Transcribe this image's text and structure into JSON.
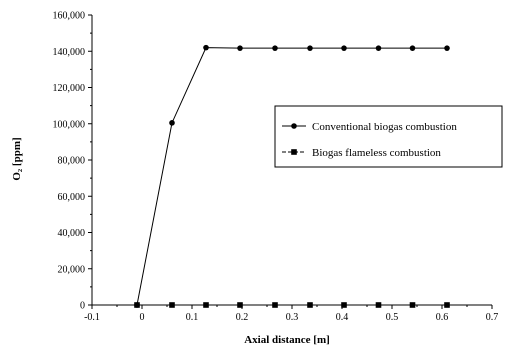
{
  "chart_data": {
    "type": "line",
    "xlabel": "Axial distance [m]",
    "ylabel": "O₂ [ppm]",
    "xlim": [
      -0.1,
      0.7
    ],
    "ylim": [
      0,
      160000
    ],
    "x_ticks": [
      -0.1,
      0,
      0.1,
      0.2,
      0.3,
      0.4,
      0.5,
      0.6,
      0.7
    ],
    "x_tick_labels": [
      "-0.1",
      "0",
      "0.1",
      "0.2",
      "0.3",
      "0.4",
      "0.5",
      "0.6",
      "0.7"
    ],
    "y_ticks": [
      0,
      20000,
      40000,
      60000,
      80000,
      100000,
      120000,
      140000,
      160000
    ],
    "y_tick_labels": [
      "0",
      "20,000",
      "40,000",
      "60,000",
      "80,000",
      "100,000",
      "120,000",
      "140,000",
      "160,000"
    ],
    "grid": false,
    "legend_position": "right",
    "series": [
      {
        "name": "Conventional biogas combustion",
        "marker": "circle",
        "line_style": "solid",
        "color": "#000000",
        "x": [
          -0.01,
          0.06,
          0.128,
          0.196,
          0.266,
          0.336,
          0.404,
          0.473,
          0.541,
          0.61
        ],
        "values": [
          0,
          100500,
          142000,
          141700,
          141700,
          141700,
          141700,
          141700,
          141700,
          141700
        ]
      },
      {
        "name": "Biogas flameless combustion",
        "marker": "square",
        "line_style": "dashed",
        "color": "#000000",
        "x": [
          -0.01,
          0.06,
          0.128,
          0.196,
          0.266,
          0.336,
          0.404,
          0.473,
          0.541,
          0.61
        ],
        "values": [
          0,
          0,
          0,
          0,
          0,
          0,
          0,
          0,
          0,
          0
        ]
      }
    ]
  }
}
